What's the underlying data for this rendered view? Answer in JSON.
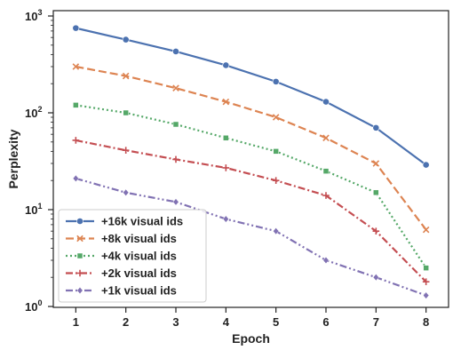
{
  "chart_data": {
    "type": "line",
    "xlabel": "Epoch",
    "ylabel": "Perplexity",
    "x": [
      1,
      2,
      3,
      4,
      5,
      6,
      7,
      8
    ],
    "xticks": [
      "1",
      "2",
      "3",
      "4",
      "5",
      "6",
      "7",
      "8"
    ],
    "yscale": "log",
    "ylim": [
      1,
      1000
    ],
    "yticks": [
      {
        "value": 1,
        "base": "10",
        "exp": "0"
      },
      {
        "value": 10,
        "base": "10",
        "exp": "1"
      },
      {
        "value": 100,
        "base": "10",
        "exp": "2"
      },
      {
        "value": 1000,
        "base": "10",
        "exp": "3"
      }
    ],
    "grid": false,
    "legend_position": "bottom-left",
    "series": [
      {
        "name": "+16k visual ids",
        "color": "#4c72b0",
        "marker": "circle",
        "dash": "solid",
        "values": [
          750,
          570,
          430,
          310,
          210,
          130,
          70,
          29
        ]
      },
      {
        "name": "+8k visual ids",
        "color": "#dd8452",
        "marker": "x",
        "dash": "dashed",
        "values": [
          300,
          240,
          180,
          130,
          90,
          55,
          30,
          6.2
        ]
      },
      {
        "name": "+4k visual ids",
        "color": "#55a868",
        "marker": "square",
        "dash": "dotted",
        "values": [
          120,
          100,
          76,
          55,
          40,
          25,
          15,
          2.5
        ]
      },
      {
        "name": "+2k visual ids",
        "color": "#c44e52",
        "marker": "plus",
        "dash": "dashdot",
        "values": [
          52,
          41,
          33,
          27,
          20,
          14,
          6,
          1.8
        ]
      },
      {
        "name": "+1k visual ids",
        "color": "#8172b3",
        "marker": "diamond",
        "dash": "dashdotdot",
        "values": [
          21,
          15,
          12,
          8,
          6,
          3,
          2,
          1.3
        ]
      }
    ]
  }
}
